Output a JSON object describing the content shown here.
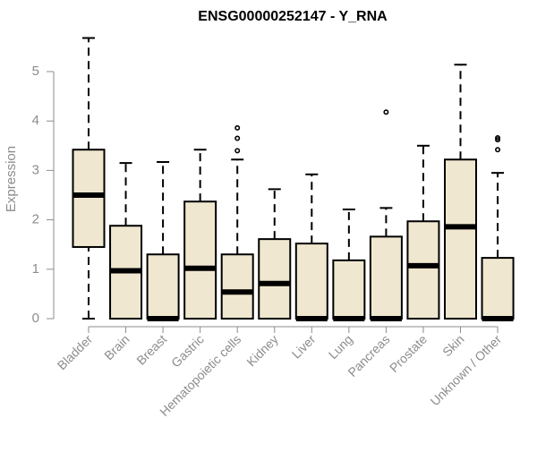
{
  "chart_data": {
    "type": "boxplot",
    "title": "ENSG00000252147 - Y_RNA",
    "ylabel": "Expression",
    "xlabel": "",
    "ylim": [
      0,
      5.75
    ],
    "yticks": [
      0,
      1,
      2,
      3,
      4,
      5
    ],
    "grid": false,
    "legend": "none",
    "box_fill": "#efe7cf",
    "box_stroke": "#000000",
    "axis_color": "#8c8c8c",
    "categories": [
      "Bladder",
      "Brain",
      "Breast",
      "Gastric",
      "Hematopoietic cells",
      "Kidney",
      "Liver",
      "Lung",
      "Pancreas",
      "Prostate",
      "Skin",
      "Unknown / Other"
    ],
    "boxes": [
      {
        "min": 0.0,
        "q1": 1.45,
        "median": 2.5,
        "q3": 3.42,
        "max": 5.68,
        "outliers": []
      },
      {
        "min": 0.0,
        "q1": 0.0,
        "median": 0.97,
        "q3": 1.88,
        "max": 3.15,
        "outliers": []
      },
      {
        "min": 0.0,
        "q1": 0.0,
        "median": 0.0,
        "q3": 1.3,
        "max": 3.17,
        "outliers": []
      },
      {
        "min": 0.0,
        "q1": 0.0,
        "median": 1.02,
        "q3": 2.37,
        "max": 3.42,
        "outliers": []
      },
      {
        "min": 0.0,
        "q1": 0.0,
        "median": 0.54,
        "q3": 1.3,
        "max": 3.22,
        "outliers": [
          3.4,
          3.65,
          3.86
        ]
      },
      {
        "min": 0.0,
        "q1": 0.0,
        "median": 0.71,
        "q3": 1.61,
        "max": 2.62,
        "outliers": []
      },
      {
        "min": 0.0,
        "q1": 0.0,
        "median": 0.0,
        "q3": 1.52,
        "max": 2.92,
        "outliers": []
      },
      {
        "min": 0.0,
        "q1": 0.0,
        "median": 0.0,
        "q3": 1.18,
        "max": 2.21,
        "outliers": []
      },
      {
        "min": 0.0,
        "q1": 0.0,
        "median": 0.0,
        "q3": 1.66,
        "max": 2.24,
        "outliers": [
          4.18
        ]
      },
      {
        "min": 0.0,
        "q1": 0.0,
        "median": 1.07,
        "q3": 1.97,
        "max": 3.5,
        "outliers": []
      },
      {
        "min": 0.0,
        "q1": 0.0,
        "median": 1.86,
        "q3": 3.22,
        "max": 5.14,
        "outliers": []
      },
      {
        "min": 0.0,
        "q1": 0.0,
        "median": 0.0,
        "q3": 1.23,
        "max": 2.95,
        "outliers": [
          3.42,
          3.62,
          3.66
        ]
      }
    ]
  }
}
